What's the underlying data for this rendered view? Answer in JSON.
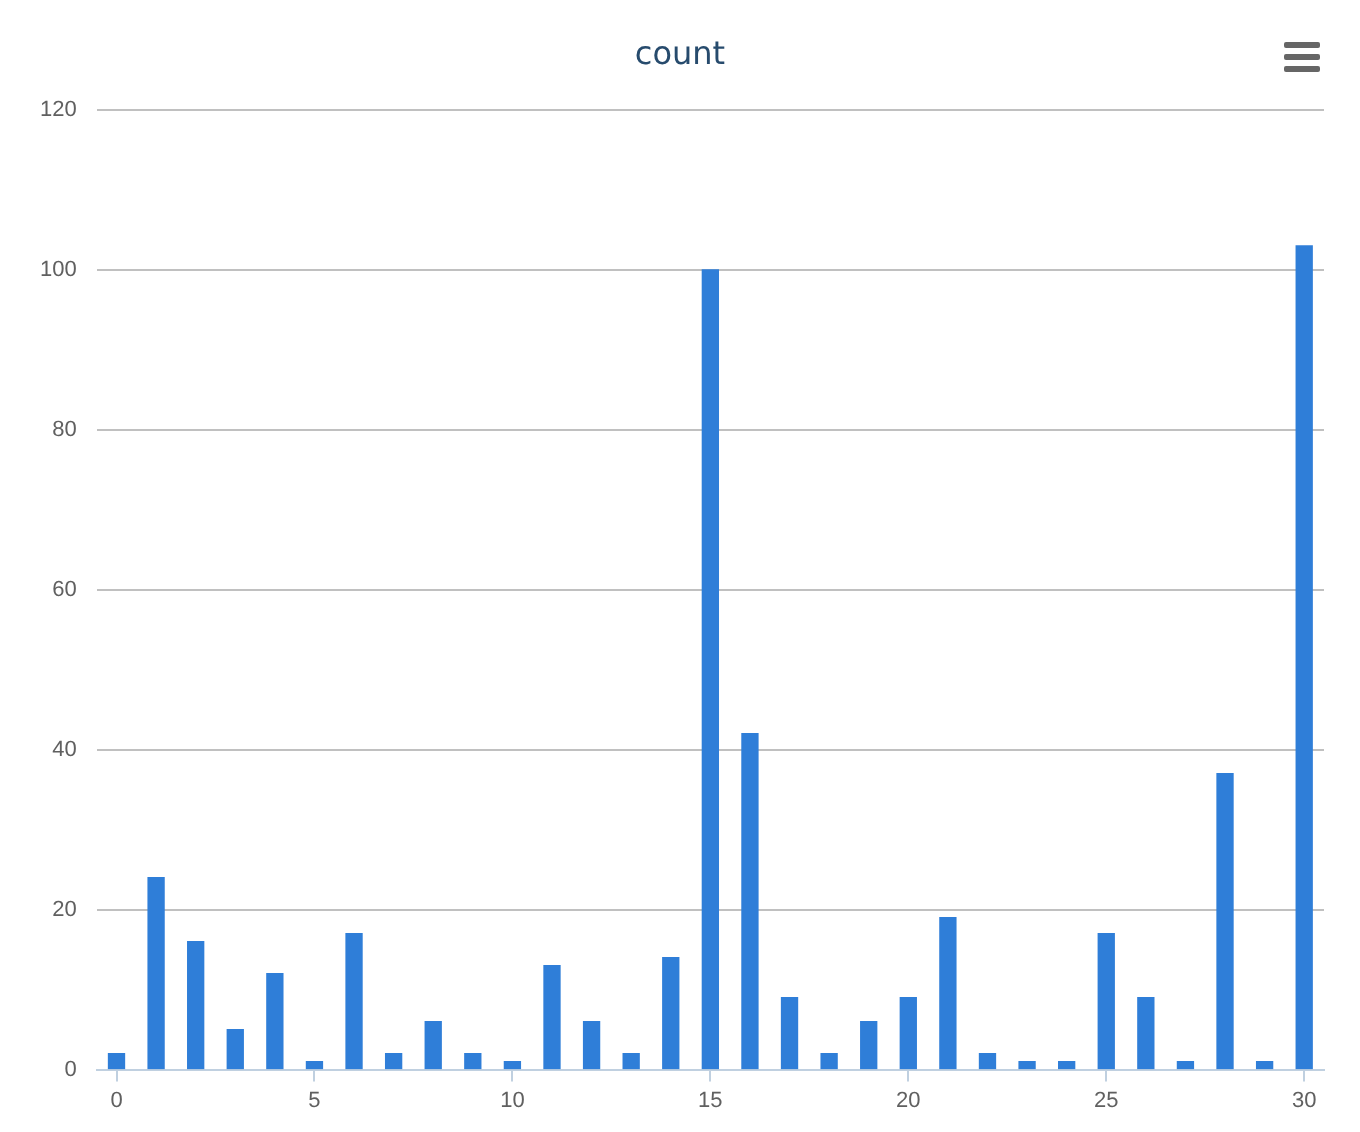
{
  "chart_data": {
    "type": "bar",
    "title": "count",
    "x": [
      0,
      1,
      2,
      3,
      4,
      5,
      6,
      7,
      8,
      9,
      10,
      11,
      12,
      13,
      14,
      15,
      16,
      17,
      18,
      19,
      20,
      21,
      22,
      23,
      24,
      25,
      26,
      27,
      28,
      29,
      30
    ],
    "values": [
      2,
      24,
      16,
      5,
      12,
      1,
      17,
      2,
      6,
      2,
      1,
      13,
      6,
      2,
      14,
      100,
      42,
      9,
      2,
      6,
      9,
      19,
      2,
      1,
      1,
      17,
      9,
      1,
      37,
      1,
      103
    ],
    "color": "#2f7ed8",
    "xlim": [
      -0.5,
      30.5
    ],
    "xticks": [
      0,
      5,
      10,
      15,
      20,
      25,
      30
    ],
    "ylim": [
      0,
      120
    ],
    "yticks": [
      0,
      20,
      40,
      60,
      80,
      100,
      120
    ],
    "grid": "y",
    "legend": false
  }
}
